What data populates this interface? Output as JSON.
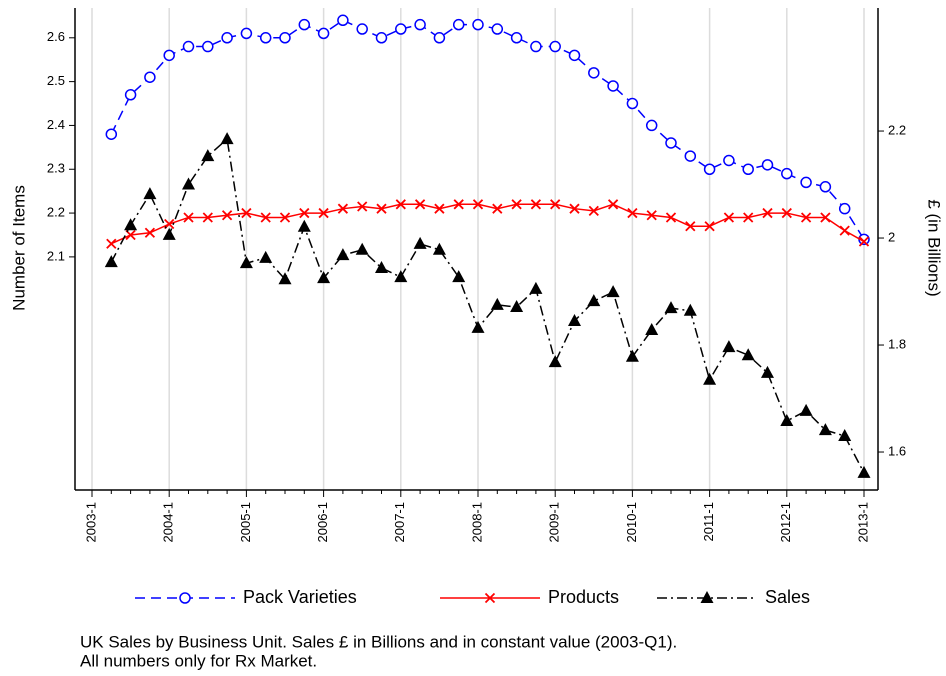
{
  "chart_data": {
    "type": "line",
    "ylabel": "Number of Items",
    "y2label": "£ (in Billions)",
    "categories": [
      "2003-1",
      null,
      null,
      null,
      "2004-1",
      null,
      null,
      null,
      "2005-1",
      null,
      null,
      null,
      "2006-1",
      null,
      null,
      null,
      "2007-1",
      null,
      null,
      null,
      "2008-1",
      null,
      null,
      null,
      "2009-1",
      null,
      null,
      null,
      "2010-1",
      null,
      null,
      null,
      "2011-1",
      null,
      null,
      null,
      "2012-1",
      null,
      null,
      null,
      "2013-1"
    ],
    "ylim": [
      1.568,
      2.668
    ],
    "yticks": [
      2.1,
      2.2,
      2.3,
      2.4,
      2.5,
      2.6
    ],
    "y2lim": [
      1.529,
      2.43
    ],
    "y2ticks": [
      1.6,
      1.8,
      2,
      2.2
    ],
    "grid": true,
    "legend": "bottom",
    "series": [
      {
        "name": "Pack Varieties",
        "color": "#0000ff",
        "marker": "circle",
        "dash": "dashed",
        "values": [
          null,
          2.38,
          2.47,
          2.51,
          2.56,
          2.58,
          2.58,
          2.6,
          2.61,
          2.6,
          2.6,
          2.63,
          2.61,
          2.64,
          2.62,
          2.6,
          2.62,
          2.63,
          2.6,
          2.63,
          2.63,
          2.62,
          2.6,
          2.58,
          2.58,
          2.56,
          2.52,
          2.49,
          2.45,
          2.4,
          2.36,
          2.33,
          2.3,
          2.32,
          2.3,
          2.31,
          2.29,
          2.27,
          2.26,
          2.21,
          2.14
        ]
      },
      {
        "name": "Products",
        "color": "#ff0000",
        "marker": "x",
        "dash": "solid",
        "values": [
          null,
          2.13,
          2.15,
          2.155,
          2.175,
          2.19,
          2.19,
          2.195,
          2.2,
          2.19,
          2.19,
          2.2,
          2.2,
          2.21,
          2.215,
          2.21,
          2.22,
          2.22,
          2.21,
          2.22,
          2.22,
          2.21,
          2.22,
          2.22,
          2.22,
          2.21,
          2.205,
          2.22,
          2.2,
          2.195,
          2.19,
          2.17,
          2.17,
          2.19,
          2.19,
          2.2,
          2.2,
          2.19,
          2.19,
          2.16,
          2.135
        ]
      },
      {
        "name": "Sales",
        "color": "#000000",
        "marker": "triangle",
        "dash": "dashdot",
        "axis": "y2",
        "values": [
          null,
          1.955,
          2.024,
          2.082,
          2.006,
          2.1,
          2.153,
          2.185,
          1.953,
          1.963,
          1.923,
          2.021,
          1.925,
          1.968,
          1.978,
          1.944,
          1.927,
          1.989,
          1.978,
          1.927,
          1.832,
          1.875,
          1.871,
          1.905,
          1.768,
          1.845,
          1.882,
          1.899,
          1.778,
          1.828,
          1.869,
          1.864,
          1.735,
          1.796,
          1.781,
          1.748,
          1.658,
          1.677,
          1.641,
          1.63,
          1.561
        ]
      }
    ],
    "caption": [
      "UK Sales by Business Unit. Sales £ in Billions and in constant value (2003-Q1).",
      "All numbers only for Rx Market."
    ]
  }
}
